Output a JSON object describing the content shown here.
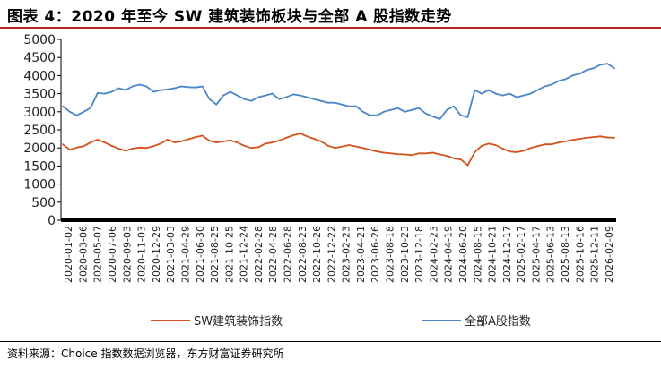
{
  "title": "图表 4：2020 年至今 SW 建筑装饰板块与全部 A 股指数走势",
  "source": "资料来源：Choice 指数数据浏览器，东方财富证券研究所",
  "colors": {
    "sw": "#d5521c",
    "a_share": "#4a86c8",
    "title_rule": "#b52020"
  },
  "chart_data": {
    "type": "line",
    "title": "",
    "xlabel": "",
    "ylabel": "",
    "ylim": [
      0,
      5000
    ],
    "yticks": [
      0,
      500,
      1000,
      1500,
      2000,
      2500,
      3000,
      3500,
      4000,
      4500,
      5000
    ],
    "grid": false,
    "legend": "bottom",
    "xticks": [
      "2020-01-02",
      "2020-03-06",
      "2020-05-07",
      "2020-07-06",
      "2020-09-03",
      "2020-11-03",
      "2020-12-29",
      "2021-03-03",
      "2021-04-29",
      "2021-06-30",
      "2021-08-25",
      "2021-10-25",
      "2021-12-24",
      "2022-02-28",
      "2022-04-28",
      "2022-06-28",
      "2022-08-23",
      "2022-10-26",
      "2022-12-22",
      "2023-02-23",
      "2023-04-21",
      "2023-06-26",
      "2023-08-18",
      "2023-10-23",
      "2023-12-18",
      "2024-02-23",
      "2024-04-19",
      "2024-06-20",
      "2024-08-15",
      "2024-10-21",
      "2024-12-17",
      "2025-02-17",
      "2025-04-17",
      "2025-06-13",
      "2025-08-13",
      "2025-10-16",
      "2025-12-11",
      "2026-02-09"
    ],
    "series": [
      {
        "name": "SW建筑装饰指数",
        "color": "#d5521c",
        "values": [
          2100,
          1950,
          2010,
          2050,
          2150,
          2230,
          2150,
          2060,
          1980,
          1920,
          1980,
          2010,
          2000,
          2050,
          2120,
          2230,
          2150,
          2180,
          2240,
          2300,
          2340,
          2200,
          2150,
          2180,
          2210,
          2150,
          2060,
          2000,
          2020,
          2120,
          2150,
          2200,
          2280,
          2350,
          2400,
          2320,
          2250,
          2180,
          2060,
          2000,
          2040,
          2080,
          2040,
          2000,
          1950,
          1900,
          1870,
          1850,
          1830,
          1820,
          1800,
          1850,
          1850,
          1870,
          1820,
          1780,
          1710,
          1680,
          1520,
          1880,
          2060,
          2120,
          2080,
          1980,
          1900,
          1880,
          1920,
          2000,
          2050,
          2100,
          2100,
          2150,
          2180,
          2220,
          2250,
          2280,
          2300,
          2320,
          2290,
          2280
        ]
      },
      {
        "name": "全部A股指数",
        "color": "#4a86c8",
        "values": [
          3150,
          3000,
          2900,
          3000,
          3110,
          3520,
          3500,
          3550,
          3650,
          3600,
          3700,
          3750,
          3700,
          3550,
          3600,
          3620,
          3650,
          3700,
          3680,
          3670,
          3700,
          3350,
          3200,
          3450,
          3550,
          3450,
          3350,
          3300,
          3400,
          3450,
          3500,
          3350,
          3400,
          3480,
          3450,
          3400,
          3350,
          3300,
          3250,
          3250,
          3200,
          3150,
          3150,
          3000,
          2900,
          2900,
          3000,
          3050,
          3100,
          3000,
          3050,
          3100,
          2950,
          2870,
          2800,
          3050,
          3150,
          2900,
          2850,
          3600,
          3500,
          3600,
          3500,
          3450,
          3500,
          3400,
          3450,
          3500,
          3600,
          3700,
          3750,
          3850,
          3900,
          4000,
          4050,
          4150,
          4200,
          4300,
          4330,
          4200
        ]
      }
    ]
  }
}
